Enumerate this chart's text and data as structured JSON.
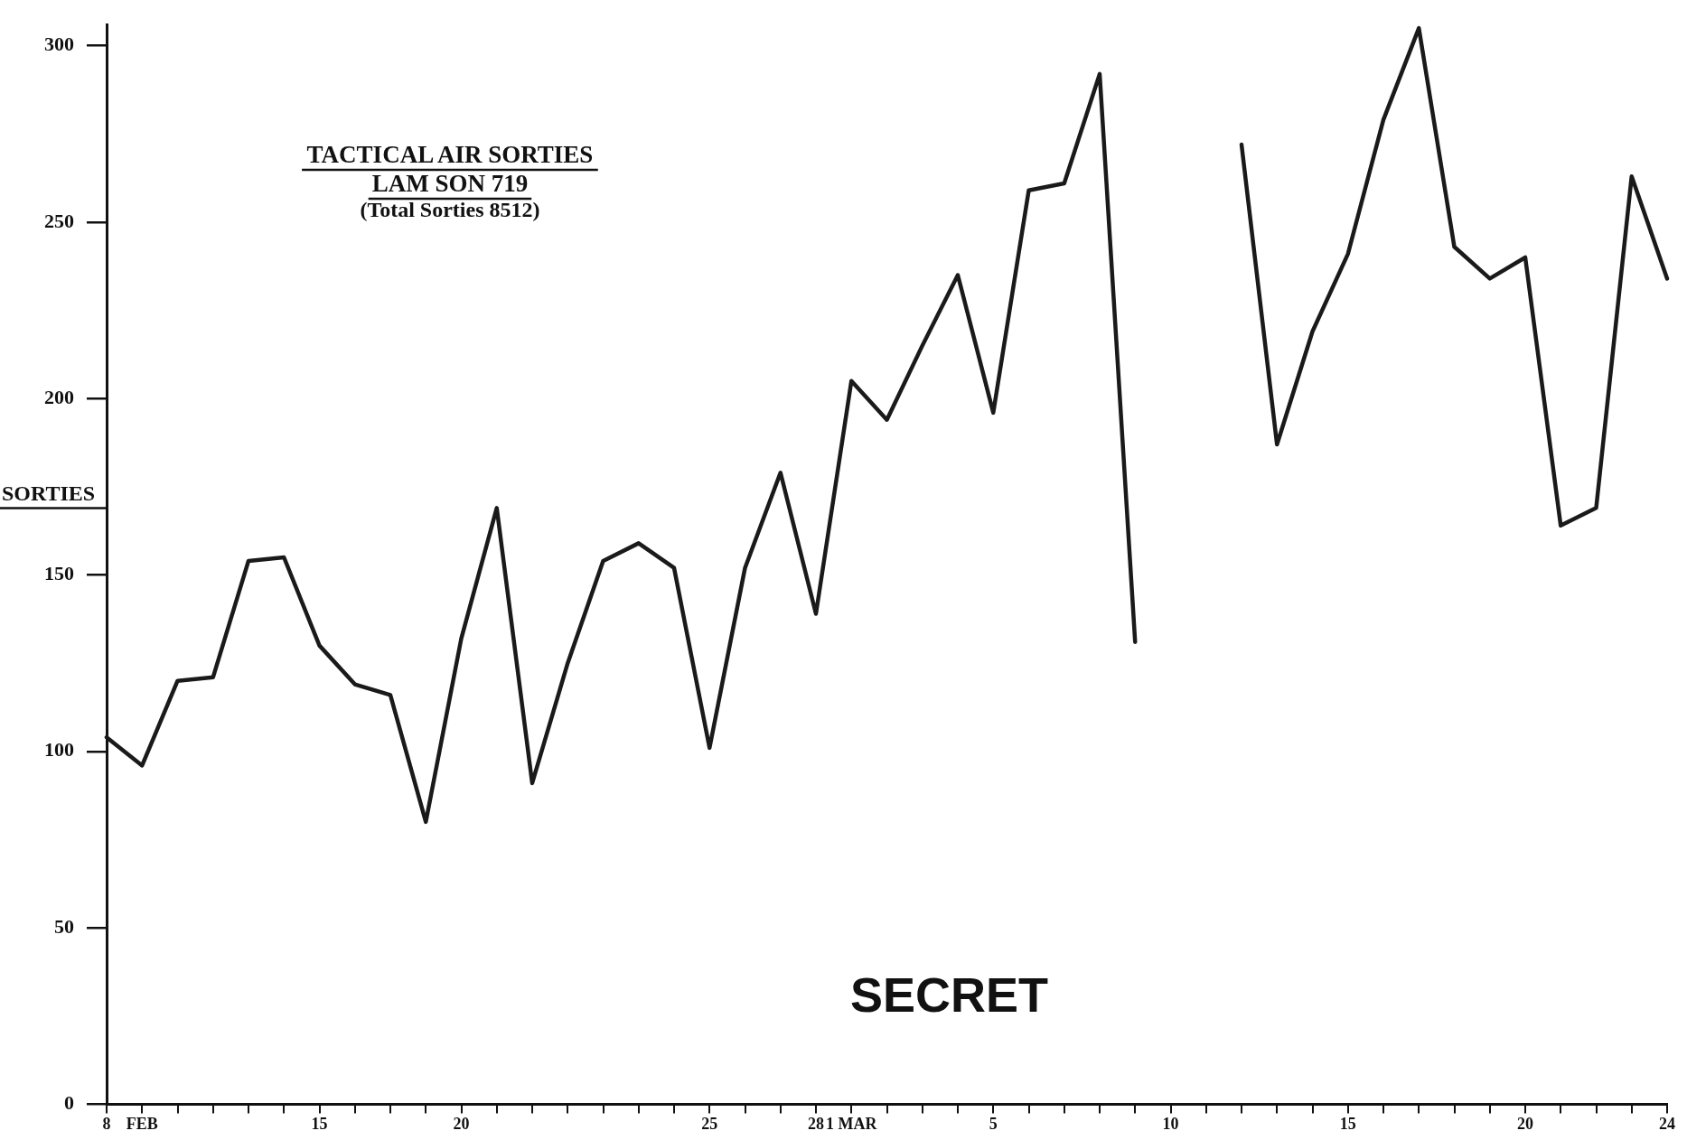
{
  "chart_data": {
    "type": "line",
    "title": "TACTICAL AIR SORTIES",
    "subtitle": "LAM SON 719",
    "annotations": [
      "(Total Sorties 8512)",
      "SECRET"
    ],
    "ylabel": "SORTIES",
    "categories": [
      "8",
      "FEB",
      null,
      null,
      null,
      null,
      "15",
      null,
      null,
      null,
      "20",
      null,
      null,
      null,
      null,
      null,
      null,
      "25",
      null,
      null,
      "28",
      "1 MAR",
      null,
      null,
      null,
      "5",
      null,
      null,
      null,
      null,
      "10",
      null,
      null,
      null,
      null,
      "15",
      null,
      null,
      null,
      null,
      "20",
      null,
      null,
      null,
      "24"
    ],
    "series": [
      {
        "color": "#1a1a1a",
        "values": [
          104,
          96,
          120,
          121,
          154,
          155,
          130,
          119,
          116,
          80,
          132,
          169,
          91,
          125,
          154,
          159,
          152,
          101,
          152,
          179,
          139,
          205,
          194,
          215,
          235,
          196,
          259,
          261,
          292,
          131,
          null,
          null,
          272,
          187,
          219,
          241,
          279,
          305,
          243,
          234,
          240,
          164,
          169,
          263,
          234
        ]
      }
    ],
    "ylim": [
      0,
      306
    ],
    "yticks": [
      0,
      50,
      100,
      150,
      200,
      250,
      300
    ],
    "marker": "none",
    "line_style": "solid",
    "legend": false
  }
}
